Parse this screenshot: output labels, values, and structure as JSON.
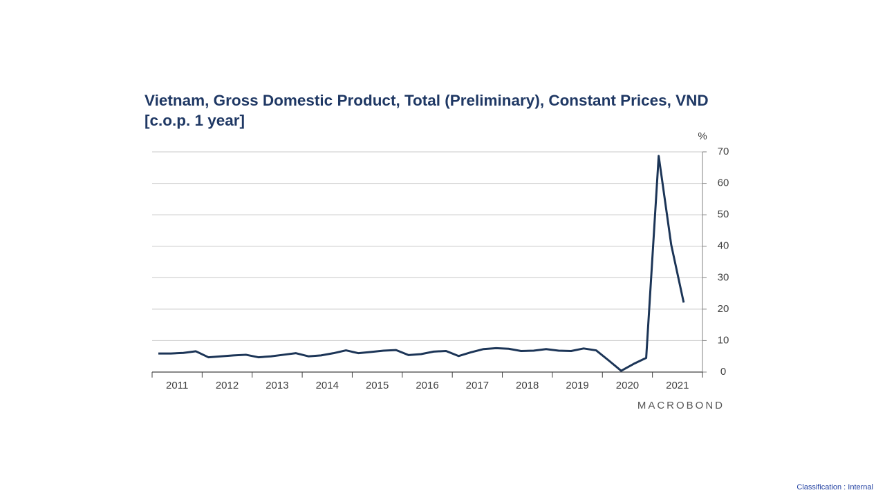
{
  "chart_data": {
    "type": "line",
    "title": "Vietnam, Gross Domestic Product, Total (Preliminary), Constant Prices, VND [c.o.p. 1 year]",
    "y_unit": "%",
    "source": "MACROBOND",
    "x": [
      2011.125,
      2011.375,
      2011.625,
      2011.875,
      2012.125,
      2012.375,
      2012.625,
      2012.875,
      2013.125,
      2013.375,
      2013.625,
      2013.875,
      2014.125,
      2014.375,
      2014.625,
      2014.875,
      2015.125,
      2015.375,
      2015.625,
      2015.875,
      2016.125,
      2016.375,
      2016.625,
      2016.875,
      2017.125,
      2017.375,
      2017.625,
      2017.875,
      2018.125,
      2018.375,
      2018.625,
      2018.875,
      2019.125,
      2019.375,
      2019.625,
      2019.875,
      2020.125,
      2020.375,
      2020.625,
      2020.875,
      2021.125,
      2021.375,
      2021.625
    ],
    "series": [
      {
        "color": "#1c3557",
        "values": [
          5.9,
          5.9,
          6.1,
          6.6,
          4.7,
          5.0,
          5.3,
          5.5,
          4.7,
          5.0,
          5.5,
          6.0,
          5.0,
          5.3,
          6.0,
          6.9,
          6.0,
          6.4,
          6.8,
          7.0,
          5.4,
          5.7,
          6.5,
          6.7,
          5.1,
          6.3,
          7.3,
          7.6,
          7.4,
          6.7,
          6.8,
          7.3,
          6.8,
          6.7,
          7.5,
          6.9,
          3.7,
          0.4,
          2.6,
          4.5,
          68.7,
          40.5,
          22.1
        ]
      }
    ],
    "xlim": [
      2011,
      2022
    ],
    "xticks": [
      2011,
      2012,
      2013,
      2014,
      2015,
      2016,
      2017,
      2018,
      2019,
      2020,
      2021,
      2022
    ],
    "xtick_labels": [
      {
        "value": 2011.5,
        "label": "2011"
      },
      {
        "value": 2012.5,
        "label": "2012"
      },
      {
        "value": 2013.5,
        "label": "2013"
      },
      {
        "value": 2014.5,
        "label": "2014"
      },
      {
        "value": 2015.5,
        "label": "2015"
      },
      {
        "value": 2016.5,
        "label": "2016"
      },
      {
        "value": 2017.5,
        "label": "2017"
      },
      {
        "value": 2018.5,
        "label": "2018"
      },
      {
        "value": 2019.5,
        "label": "2019"
      },
      {
        "value": 2020.5,
        "label": "2020"
      },
      {
        "value": 2021.5,
        "label": "2021"
      }
    ],
    "ylim": [
      0,
      70
    ],
    "yticks": [
      0,
      10,
      20,
      30,
      40,
      50,
      60,
      70
    ],
    "grid": true
  },
  "footer": "Classification : Internal"
}
